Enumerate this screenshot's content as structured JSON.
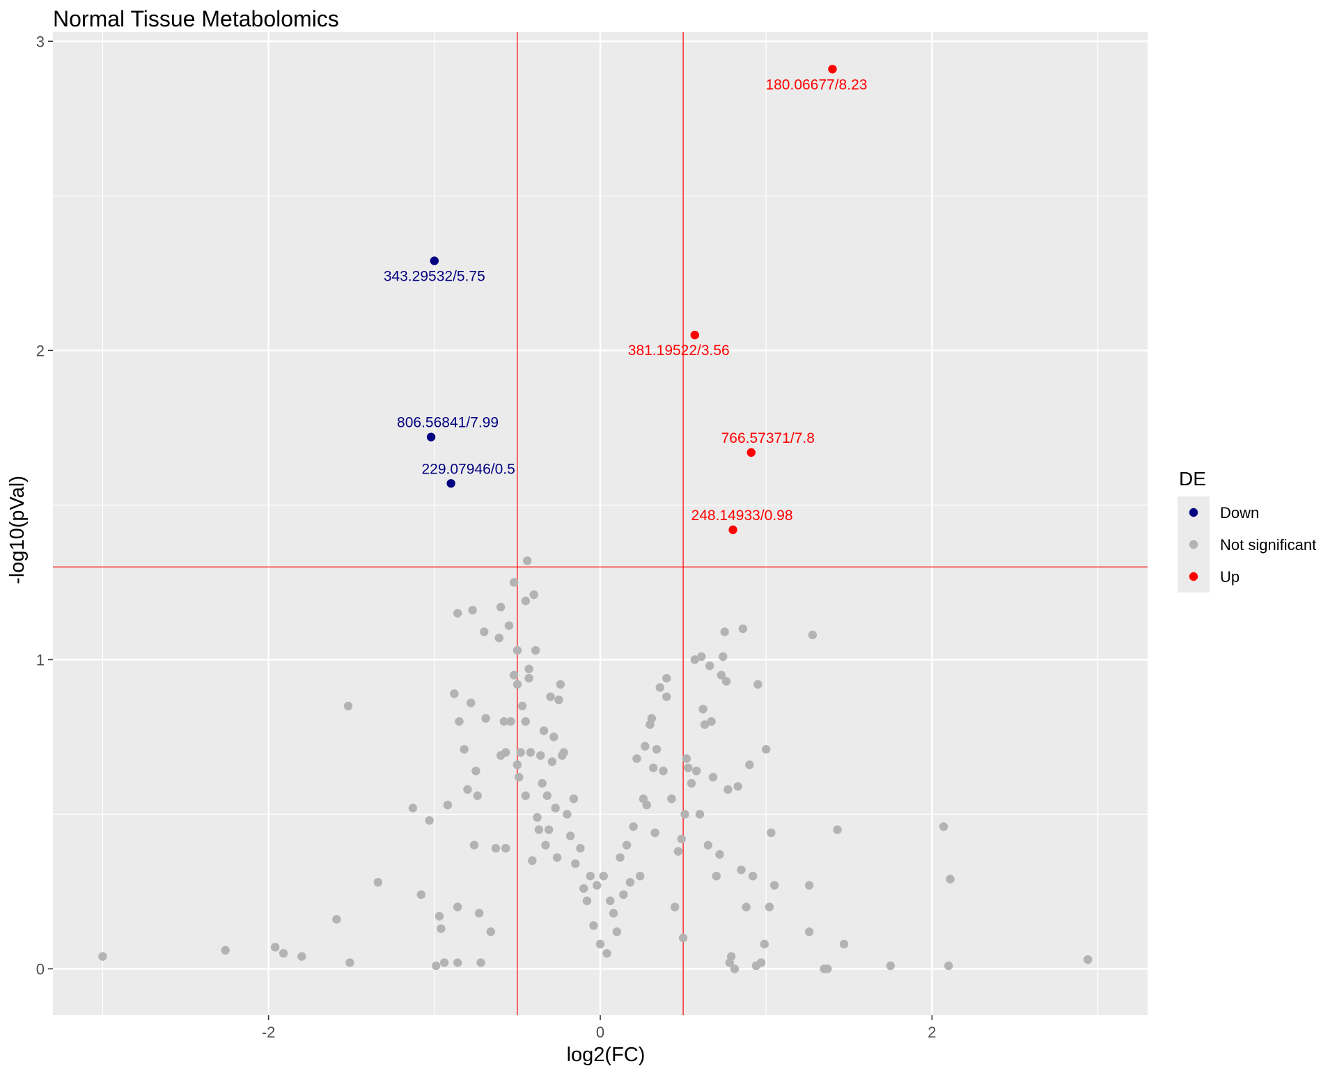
{
  "chart_data": {
    "type": "scatter",
    "title": "Normal Tissue Metabolomics",
    "xlabel": "log2(FC)",
    "ylabel": "-log10(pVal)",
    "xlim": [
      -3.3,
      3.3
    ],
    "ylim": [
      -0.15,
      3.03
    ],
    "x_ticks": [
      -2,
      0,
      2
    ],
    "x_tick_labels": [
      "-2",
      "0",
      "2"
    ],
    "y_ticks": [
      0,
      1,
      2,
      3
    ],
    "y_tick_labels": [
      "0",
      "1",
      "2",
      "3"
    ],
    "grid": true,
    "reference_lines": {
      "vertical": [
        -0.5,
        0.5
      ],
      "horizontal": [
        1.3
      ],
      "color": "#FF0000"
    },
    "legend": {
      "title": "DE",
      "position": "right",
      "entries": [
        {
          "label": "Down",
          "color": "#000080"
        },
        {
          "label": "Not significant",
          "color": "#B3B3B3"
        },
        {
          "label": "Up",
          "color": "#FF0000"
        }
      ]
    },
    "series": [
      {
        "name": "Down",
        "color": "#000080",
        "points": [
          {
            "x": -1.0,
            "y": 2.29,
            "label": "343.29532/5.75"
          },
          {
            "x": -1.02,
            "y": 1.72,
            "label": "806.56841/7.99"
          },
          {
            "x": -0.9,
            "y": 1.57,
            "label": "229.07946/0.5"
          }
        ]
      },
      {
        "name": "Up",
        "color": "#FF0000",
        "points": [
          {
            "x": 1.4,
            "y": 2.91,
            "label": "180.06677/8.23"
          },
          {
            "x": 0.57,
            "y": 2.05,
            "label": "381.19522/3.56"
          },
          {
            "x": 0.91,
            "y": 1.67,
            "label": "766.57371/7.8"
          },
          {
            "x": 0.8,
            "y": 1.42,
            "label": "248.14933/0.98"
          }
        ]
      },
      {
        "name": "Not significant",
        "color": "#B3B3B3",
        "points": [
          {
            "x": -3.0,
            "y": 0.04
          },
          {
            "x": -2.26,
            "y": 0.06
          },
          {
            "x": -1.96,
            "y": 0.07
          },
          {
            "x": -1.91,
            "y": 0.05
          },
          {
            "x": -1.8,
            "y": 0.04
          },
          {
            "x": -1.59,
            "y": 0.16
          },
          {
            "x": -1.52,
            "y": 0.85
          },
          {
            "x": -1.51,
            "y": 0.02
          },
          {
            "x": -1.34,
            "y": 0.28
          },
          {
            "x": -1.13,
            "y": 0.52
          },
          {
            "x": -1.08,
            "y": 0.24
          },
          {
            "x": -1.03,
            "y": 0.48
          },
          {
            "x": -0.99,
            "y": 0.01
          },
          {
            "x": -0.97,
            "y": 0.17
          },
          {
            "x": -0.96,
            "y": 0.13
          },
          {
            "x": -0.94,
            "y": 0.02
          },
          {
            "x": -0.92,
            "y": 0.53
          },
          {
            "x": -0.88,
            "y": 0.89
          },
          {
            "x": -0.86,
            "y": 0.2
          },
          {
            "x": -0.86,
            "y": 1.15
          },
          {
            "x": -0.86,
            "y": 0.02
          },
          {
            "x": -0.85,
            "y": 0.8
          },
          {
            "x": -0.82,
            "y": 0.71
          },
          {
            "x": -0.8,
            "y": 0.58
          },
          {
            "x": -0.78,
            "y": 0.86
          },
          {
            "x": -0.77,
            "y": 1.16
          },
          {
            "x": -0.76,
            "y": 0.4
          },
          {
            "x": -0.75,
            "y": 0.64
          },
          {
            "x": -0.74,
            "y": 0.56
          },
          {
            "x": -0.73,
            "y": 0.18
          },
          {
            "x": -0.72,
            "y": 0.02
          },
          {
            "x": -0.7,
            "y": 1.09
          },
          {
            "x": -0.69,
            "y": 0.81
          },
          {
            "x": -0.66,
            "y": 0.12
          },
          {
            "x": -0.63,
            "y": 0.39
          },
          {
            "x": -0.61,
            "y": 1.07
          },
          {
            "x": -0.6,
            "y": 0.69
          },
          {
            "x": -0.6,
            "y": 1.17
          },
          {
            "x": -0.58,
            "y": 0.8
          },
          {
            "x": -0.57,
            "y": 0.7
          },
          {
            "x": -0.57,
            "y": 0.39
          },
          {
            "x": -0.55,
            "y": 1.11
          },
          {
            "x": -0.54,
            "y": 0.8
          },
          {
            "x": -0.52,
            "y": 0.95
          },
          {
            "x": -0.52,
            "y": 1.25
          },
          {
            "x": -0.5,
            "y": 0.92
          },
          {
            "x": -0.5,
            "y": 1.03
          },
          {
            "x": -0.5,
            "y": 0.66
          },
          {
            "x": -0.49,
            "y": 0.62
          },
          {
            "x": -0.48,
            "y": 0.7
          },
          {
            "x": -0.47,
            "y": 0.85
          },
          {
            "x": -0.45,
            "y": 0.8
          },
          {
            "x": -0.45,
            "y": 0.56
          },
          {
            "x": -0.45,
            "y": 1.19
          },
          {
            "x": -0.44,
            "y": 1.32
          },
          {
            "x": -0.43,
            "y": 0.97
          },
          {
            "x": -0.43,
            "y": 0.94
          },
          {
            "x": -0.42,
            "y": 0.7
          },
          {
            "x": -0.41,
            "y": 0.35
          },
          {
            "x": -0.4,
            "y": 1.21
          },
          {
            "x": -0.39,
            "y": 1.03
          },
          {
            "x": -0.38,
            "y": 0.49
          },
          {
            "x": -0.37,
            "y": 0.45
          },
          {
            "x": -0.36,
            "y": 0.69
          },
          {
            "x": -0.35,
            "y": 0.6
          },
          {
            "x": -0.34,
            "y": 0.77
          },
          {
            "x": -0.33,
            "y": 0.4
          },
          {
            "x": -0.32,
            "y": 0.56
          },
          {
            "x": -0.31,
            "y": 0.45
          },
          {
            "x": -0.3,
            "y": 0.88
          },
          {
            "x": -0.29,
            "y": 0.67
          },
          {
            "x": -0.28,
            "y": 0.75
          },
          {
            "x": -0.27,
            "y": 0.52
          },
          {
            "x": -0.26,
            "y": 0.36
          },
          {
            "x": -0.25,
            "y": 0.87
          },
          {
            "x": -0.24,
            "y": 0.92
          },
          {
            "x": -0.23,
            "y": 0.69
          },
          {
            "x": -0.22,
            "y": 0.7
          },
          {
            "x": -0.2,
            "y": 0.5
          },
          {
            "x": -0.18,
            "y": 0.43
          },
          {
            "x": -0.16,
            "y": 0.55
          },
          {
            "x": -0.15,
            "y": 0.34
          },
          {
            "x": -0.12,
            "y": 0.39
          },
          {
            "x": -0.1,
            "y": 0.26
          },
          {
            "x": -0.08,
            "y": 0.22
          },
          {
            "x": -0.06,
            "y": 0.3
          },
          {
            "x": -0.04,
            "y": 0.14
          },
          {
            "x": -0.02,
            "y": 0.27
          },
          {
            "x": 0.0,
            "y": 0.08
          },
          {
            "x": 0.02,
            "y": 0.3
          },
          {
            "x": 0.04,
            "y": 0.05
          },
          {
            "x": 0.06,
            "y": 0.22
          },
          {
            "x": 0.08,
            "y": 0.18
          },
          {
            "x": 0.1,
            "y": 0.12
          },
          {
            "x": 0.12,
            "y": 0.36
          },
          {
            "x": 0.14,
            "y": 0.24
          },
          {
            "x": 0.16,
            "y": 0.4
          },
          {
            "x": 0.18,
            "y": 0.28
          },
          {
            "x": 0.2,
            "y": 0.46
          },
          {
            "x": 0.22,
            "y": 0.68
          },
          {
            "x": 0.24,
            "y": 0.3
          },
          {
            "x": 0.26,
            "y": 0.55
          },
          {
            "x": 0.27,
            "y": 0.72
          },
          {
            "x": 0.28,
            "y": 0.53
          },
          {
            "x": 0.3,
            "y": 0.79
          },
          {
            "x": 0.31,
            "y": 0.81
          },
          {
            "x": 0.32,
            "y": 0.65
          },
          {
            "x": 0.33,
            "y": 0.44
          },
          {
            "x": 0.34,
            "y": 0.71
          },
          {
            "x": 0.36,
            "y": 0.91
          },
          {
            "x": 0.38,
            "y": 0.64
          },
          {
            "x": 0.4,
            "y": 0.94
          },
          {
            "x": 0.4,
            "y": 0.88
          },
          {
            "x": 0.43,
            "y": 0.55
          },
          {
            "x": 0.45,
            "y": 0.2
          },
          {
            "x": 0.47,
            "y": 0.38
          },
          {
            "x": 0.49,
            "y": 0.42
          },
          {
            "x": 0.5,
            "y": 0.1
          },
          {
            "x": 0.51,
            "y": 0.5
          },
          {
            "x": 0.52,
            "y": 0.68
          },
          {
            "x": 0.53,
            "y": 0.65
          },
          {
            "x": 0.55,
            "y": 0.6
          },
          {
            "x": 0.57,
            "y": 1.0
          },
          {
            "x": 0.58,
            "y": 0.64
          },
          {
            "x": 0.6,
            "y": 0.5
          },
          {
            "x": 0.61,
            "y": 1.01
          },
          {
            "x": 0.62,
            "y": 0.84
          },
          {
            "x": 0.63,
            "y": 0.79
          },
          {
            "x": 0.65,
            "y": 0.4
          },
          {
            "x": 0.66,
            "y": 0.98
          },
          {
            "x": 0.67,
            "y": 0.8
          },
          {
            "x": 0.68,
            "y": 0.62
          },
          {
            "x": 0.7,
            "y": 0.3
          },
          {
            "x": 0.72,
            "y": 0.37
          },
          {
            "x": 0.73,
            "y": 0.95
          },
          {
            "x": 0.74,
            "y": 1.01
          },
          {
            "x": 0.75,
            "y": 1.09
          },
          {
            "x": 0.76,
            "y": 0.93
          },
          {
            "x": 0.77,
            "y": 0.58
          },
          {
            "x": 0.78,
            "y": 0.02
          },
          {
            "x": 0.79,
            "y": 0.04
          },
          {
            "x": 0.81,
            "y": 0.0
          },
          {
            "x": 0.83,
            "y": 0.59
          },
          {
            "x": 0.85,
            "y": 0.32
          },
          {
            "x": 0.86,
            "y": 1.1
          },
          {
            "x": 0.88,
            "y": 0.2
          },
          {
            "x": 0.9,
            "y": 0.66
          },
          {
            "x": 0.92,
            "y": 0.3
          },
          {
            "x": 0.94,
            "y": 0.01
          },
          {
            "x": 0.95,
            "y": 0.92
          },
          {
            "x": 0.97,
            "y": 0.02
          },
          {
            "x": 0.99,
            "y": 0.08
          },
          {
            "x": 1.0,
            "y": 0.71
          },
          {
            "x": 1.02,
            "y": 0.2
          },
          {
            "x": 1.03,
            "y": 0.44
          },
          {
            "x": 1.05,
            "y": 0.27
          },
          {
            "x": 1.28,
            "y": 1.08
          },
          {
            "x": 1.26,
            "y": 0.27
          },
          {
            "x": 1.26,
            "y": 0.12
          },
          {
            "x": 1.35,
            "y": 0.0
          },
          {
            "x": 1.37,
            "y": 0.0
          },
          {
            "x": 1.43,
            "y": 0.45
          },
          {
            "x": 1.47,
            "y": 0.08
          },
          {
            "x": 1.75,
            "y": 0.01
          },
          {
            "x": 2.07,
            "y": 0.46
          },
          {
            "x": 2.1,
            "y": 0.01
          },
          {
            "x": 2.11,
            "y": 0.29
          },
          {
            "x": 2.94,
            "y": 0.03
          }
        ]
      }
    ]
  }
}
